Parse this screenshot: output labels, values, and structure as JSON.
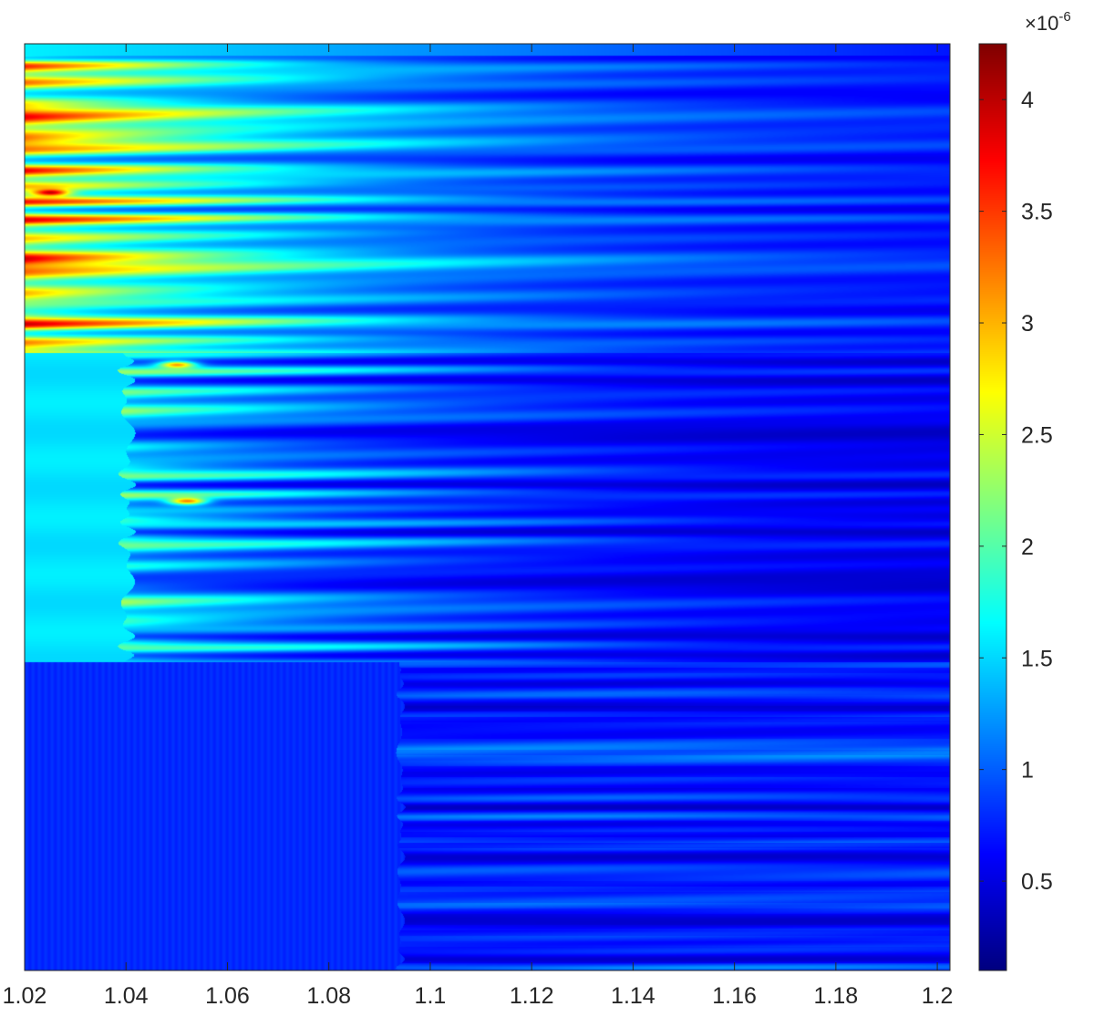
{
  "chart_data": {
    "type": "heatmap",
    "title": "",
    "xlabel": "",
    "ylabel": "",
    "colormap": "jet",
    "x_range": [
      1.02,
      1.2025
    ],
    "x_ticks": [
      1.02,
      1.04,
      1.06,
      1.08,
      1.1,
      1.12,
      1.14,
      1.16,
      1.18,
      1.2
    ],
    "x_tick_labels": [
      "1.02",
      "1.04",
      "1.06",
      "1.08",
      "1.1",
      "1.12",
      "1.14",
      "1.16",
      "1.18",
      "1.2"
    ],
    "y_ticks_shown": false,
    "grid": false,
    "color_range": [
      1e-07,
      4.25e-06
    ],
    "colorbar": {
      "position": "right",
      "ticks": [
        5e-07,
        1e-06,
        1.5e-06,
        2e-06,
        2.5e-06,
        3e-06,
        3.5e-06,
        4e-06
      ],
      "tick_labels": [
        "0.5",
        "1",
        "1.5",
        "2",
        "2.5",
        "3",
        "3.5",
        "4"
      ],
      "exponent_label": "×10",
      "exponent": "-6"
    },
    "regions": [
      {
        "name": "",
        "y_fraction": [
          0.0,
          0.333
        ],
        "level_left": 3.5e-06,
        "level_right": 6e-07,
        "striped": true
      },
      {
        "name": "",
        "y_fraction": [
          0.333,
          0.667
        ],
        "level_left": 1.55e-06,
        "level_right": 5.5e-07,
        "striped": true
      },
      {
        "name": "",
        "y_fraction": [
          0.667,
          1.0
        ],
        "level_left": 7.5e-07,
        "level_right": 7e-07,
        "striped": true,
        "transition_x": 1.095
      }
    ],
    "highlights": [
      {
        "x": 1.05,
        "y_fraction": 0.346,
        "value": 3.1e-06
      },
      {
        "x": 1.052,
        "y_fraction": 0.493,
        "value": 3.2e-06
      },
      {
        "x": 1.025,
        "y_fraction": 0.16,
        "value": 4e-06
      }
    ]
  }
}
